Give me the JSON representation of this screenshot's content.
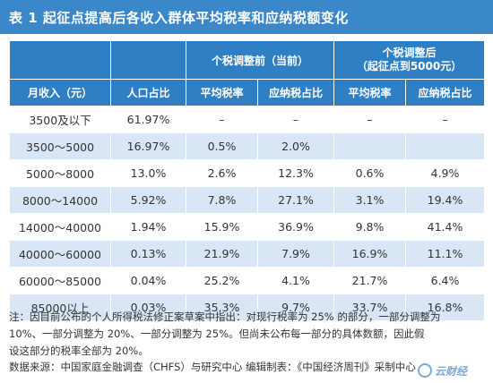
{
  "title": "表 1  起征点提高后各收入群体平均税率和应纳税额变化",
  "table": {
    "header_group_before": "个税调整前（当前）",
    "header_group_after_line1": "个税调整后",
    "header_group_after_line2": "（起征点到5000元）",
    "columns": [
      "月收入（元）",
      "人口占比",
      "平均税率",
      "应纳税占比",
      "平均税率",
      "应纳税占比"
    ],
    "rows": [
      [
        "3500及以下",
        "61.97%",
        "–",
        "–",
        "–",
        "–"
      ],
      [
        "3500～5000",
        "16.97%",
        "0.5%",
        "2.0%",
        "",
        ""
      ],
      [
        "5000～8000",
        "13.0%",
        "2.6%",
        "12.3%",
        "0.6%",
        "4.9%"
      ],
      [
        "8000～14000",
        "5.92%",
        "7.8%",
        "27.1%",
        "3.1%",
        "19.4%"
      ],
      [
        "14000～40000",
        "1.94%",
        "15.9%",
        "36.9%",
        "9.8%",
        "41.4%"
      ],
      [
        "40000～60000",
        "0.13%",
        "21.9%",
        "7.9%",
        "16.9%",
        "11.1%"
      ],
      [
        "60000～85000",
        "0.04%",
        "25.2%",
        "4.1%",
        "21.7%",
        "6.4%"
      ],
      [
        "85000以上",
        "0.03%",
        "35.3%",
        "9.7%",
        "33.7%",
        "16.8%"
      ]
    ]
  },
  "note": "注：因目前公布的个人所得税法修正案草案中指出：对现行税率为 25% 的部分，一部分调整为\n    10%、一部分调整为 20%、一部分调整为 25%。但尚未公布每一部分的具体数额，因此假\n    设这部分的税率全部为 20%。",
  "source": "数据来源：中国家庭金融调查（CHFS）与研究中心      编辑制表：《中国经济周刊》采制中心",
  "watermark": "云财经",
  "colors": {
    "header_blue": "#2f7fc4",
    "title_blue": "#3a87c9",
    "row_alt": "#d9e6f5"
  }
}
